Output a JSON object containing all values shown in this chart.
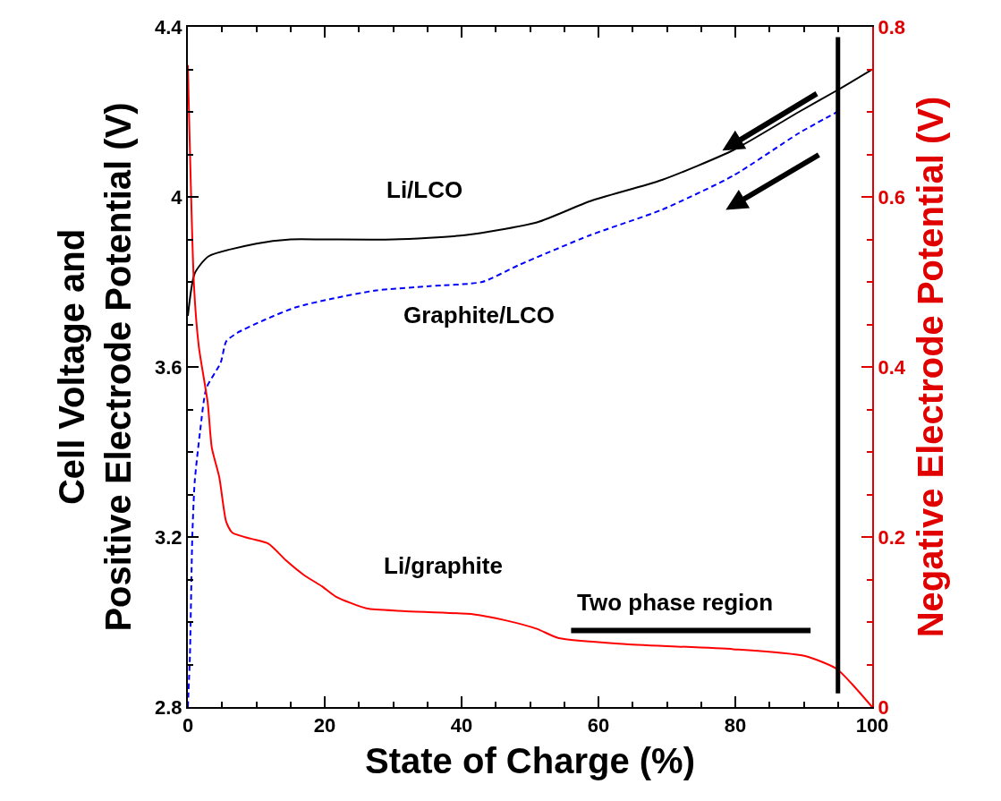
{
  "chart_data": {
    "type": "line",
    "xlabel": "State of Charge (%)",
    "ylabel": "Cell Voltage and\nPositive Electrode Potential (V)",
    "y2label": "Negative Electrode Potential (V)",
    "xlim": [
      0,
      100
    ],
    "xticks": [
      0,
      {
        "value": 5,
        "label": null
      },
      {
        "value": 10,
        "label": null
      },
      {
        "value": 15,
        "label": null
      },
      20,
      {
        "value": 25,
        "label": null
      },
      {
        "value": 30,
        "label": null
      },
      {
        "value": 35,
        "label": null
      },
      40,
      {
        "value": 45,
        "label": null
      },
      {
        "value": 50,
        "label": null
      },
      {
        "value": 55,
        "label": null
      },
      60,
      {
        "value": 65,
        "label": null
      },
      {
        "value": 70,
        "label": null
      },
      {
        "value": 75,
        "label": null
      },
      80,
      {
        "value": 85,
        "label": null
      },
      {
        "value": 90,
        "label": null
      },
      {
        "value": 95,
        "label": null
      },
      100
    ],
    "ylim": [
      2.8,
      4.4
    ],
    "yticks": [
      2.8,
      {
        "value": 2.9,
        "label": null
      },
      {
        "value": 3.0,
        "label": null
      },
      {
        "value": 3.1,
        "label": null
      },
      3.2,
      {
        "value": 3.3,
        "label": null
      },
      {
        "value": 3.4,
        "label": null
      },
      {
        "value": 3.5,
        "label": null
      },
      3.6,
      {
        "value": 3.7,
        "label": null
      },
      {
        "value": 3.8,
        "label": null
      },
      {
        "value": 3.9,
        "label": null
      },
      {
        "value": 4,
        "label": "4"
      },
      {
        "value": 4.1,
        "label": null
      },
      {
        "value": 4.2,
        "label": null
      },
      {
        "value": 4.3,
        "label": null
      },
      4.4
    ],
    "y2lim": [
      0,
      0.8
    ],
    "y2ticks": [
      0,
      {
        "value": 0.05,
        "label": null
      },
      {
        "value": 0.1,
        "label": null
      },
      {
        "value": 0.15,
        "label": null
      },
      0.2,
      {
        "value": 0.25,
        "label": null
      },
      {
        "value": 0.3,
        "label": null
      },
      {
        "value": 0.35,
        "label": null
      },
      0.4,
      {
        "value": 0.45,
        "label": null
      },
      {
        "value": 0.5,
        "label": null
      },
      {
        "value": 0.55,
        "label": null
      },
      0.6,
      {
        "value": 0.65,
        "label": null
      },
      {
        "value": 0.7,
        "label": null
      },
      {
        "value": 0.75,
        "label": null
      },
      0.8
    ],
    "grid": false,
    "marker": "none",
    "series": [
      {
        "color": "#000000",
        "line_style": "solid",
        "x": [
          0,
          1,
          3,
          10,
          15,
          20,
          30,
          40.5,
          51,
          58.8,
          69.3,
          79.7,
          89.3,
          94.8,
          100
        ],
        "values": [
          3.72,
          3.82,
          3.86,
          3.89,
          3.9,
          3.9,
          3.9,
          3.91,
          3.94,
          3.99,
          4.04,
          4.11,
          4.2,
          4.25,
          4.3
        ]
      },
      {
        "color": "#0000ff",
        "line_style": "dashed",
        "x": [
          0,
          0.3,
          0.65,
          1,
          1.8,
          2.7,
          4.8,
          5.6,
          7.2,
          11.1,
          15.7,
          20.9,
          27.5,
          35.3,
          43,
          48.4,
          58.8,
          69.3,
          79.7,
          89.3,
          94.9
        ],
        "values": [
          2.8,
          2.92,
          3.2,
          3.33,
          3.45,
          3.55,
          3.61,
          3.66,
          3.68,
          3.71,
          3.74,
          3.76,
          3.78,
          3.79,
          3.8,
          3.84,
          3.91,
          3.97,
          4.05,
          4.15,
          4.2
        ]
      },
      {
        "color": "#ff0000",
        "line_style": "solid",
        "axis": "y2",
        "x": [
          0,
          0.9,
          1.6,
          2.9,
          3.5,
          4.6,
          5.6,
          6.5,
          9.2,
          11.8,
          14.4,
          17,
          19.6,
          21.6,
          26.1,
          31.4,
          41.8,
          46.4,
          51,
          54.2,
          64,
          79.7,
          90.2,
          94.8,
          97.4,
          100
        ],
        "values": [
          0.755,
          0.495,
          0.424,
          0.358,
          0.305,
          0.27,
          0.218,
          0.205,
          0.198,
          0.192,
          0.172,
          0.155,
          0.142,
          0.13,
          0.116,
          0.113,
          0.109,
          0.102,
          0.092,
          0.081,
          0.074,
          0.068,
          0.06,
          0.045,
          0.024,
          0
        ]
      },
      {
        "color": "#000000",
        "line_style": "solid",
        "x": [
          56,
          91
        ],
        "values": [
          2.98,
          2.98
        ]
      }
    ],
    "ref_lines": [
      {
        "axis": "x",
        "value": 95,
        "color": "#000000"
      }
    ],
    "annotations": [
      "Li/LCO",
      "Graphite/LCO",
      "Li/graphite",
      "Two phase region"
    ]
  }
}
